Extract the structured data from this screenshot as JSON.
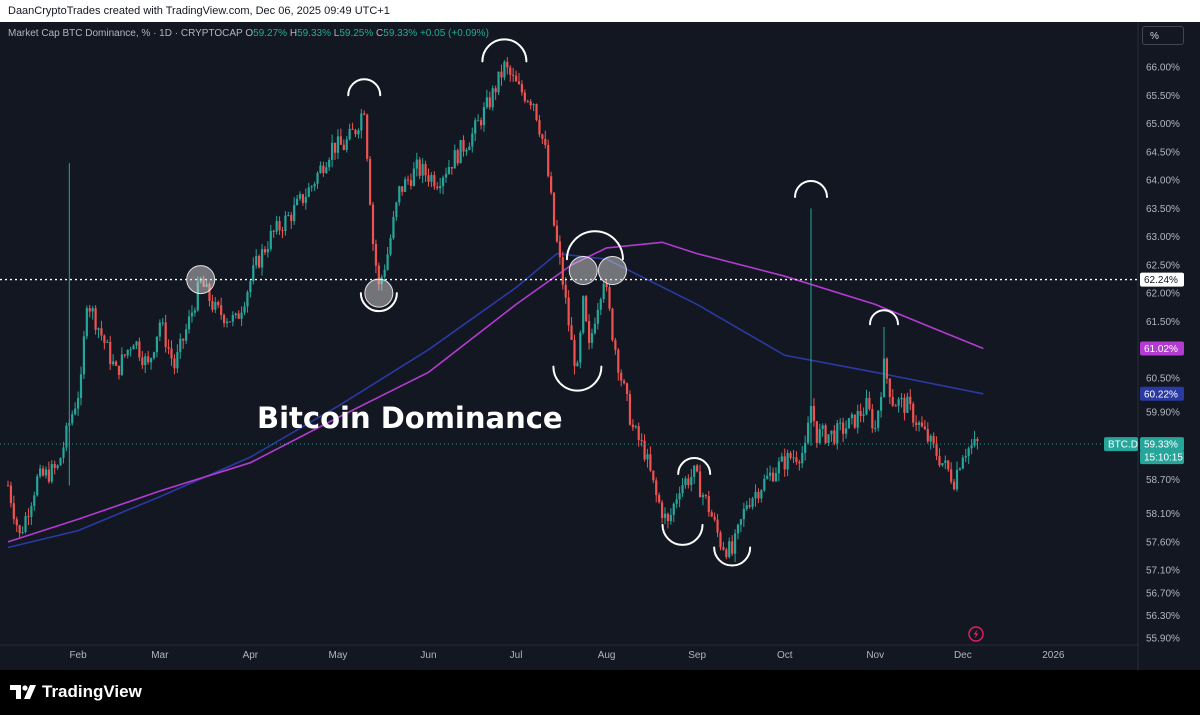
{
  "attribution": "DaanCryptoTrades created with TradingView.com, Dec 06, 2025 09:49 UTC+1",
  "header": {
    "symbol": "Market Cap BTC Dominance, %",
    "interval": "1D",
    "exchange": "CRYPTOCAP",
    "o": "59.27%",
    "h": "59.33%",
    "l": "59.25%",
    "c": "59.33%",
    "change": "+0.05 (+0.09%)"
  },
  "scale_button": "%",
  "brand": "TradingView",
  "colors": {
    "background": "#131722",
    "up": "#26a69a",
    "down": "#ef5350",
    "ma_purple": "#b33bd1",
    "ma_blue": "#2a3aa3",
    "axis_text": "#b2b5be"
  },
  "chart_data": {
    "type": "candlestick",
    "title": "Bitcoin Dominance",
    "symbol_label": "BTC.D",
    "xlabel": "",
    "ylabel": "",
    "x_tick_labels": [
      "Feb",
      "Mar",
      "Apr",
      "May",
      "Jun",
      "Jul",
      "Aug",
      "Sep",
      "Oct",
      "Nov",
      "Dec",
      "2026"
    ],
    "y_tick_labels": [
      "66.00%",
      "65.50%",
      "65.00%",
      "64.50%",
      "64.00%",
      "63.50%",
      "63.00%",
      "62.50%",
      "62.00%",
      "61.50%",
      "60.50%",
      "59.90%",
      "58.70%",
      "58.10%",
      "57.60%",
      "57.10%",
      "56.70%",
      "56.30%",
      "55.90%"
    ],
    "ylim": [
      55.8,
      66.2
    ],
    "last_price": 59.33,
    "countdown": "15:10:15",
    "level_line": 62.24,
    "ma_purple_last": 61.02,
    "ma_blue_last": 60.22,
    "price_path": [
      [
        "2025-01-08",
        58.6
      ],
      [
        "2025-01-12",
        57.7
      ],
      [
        "2025-01-18",
        58.7
      ],
      [
        "2025-01-25",
        58.9
      ],
      [
        "2025-01-29",
        59.7
      ],
      [
        "2025-02-02",
        60.4
      ],
      [
        "2025-02-04",
        61.9
      ],
      [
        "2025-02-08",
        61.4
      ],
      [
        "2025-02-14",
        60.6
      ],
      [
        "2025-02-20",
        61.2
      ],
      [
        "2025-02-25",
        60.7
      ],
      [
        "2025-03-01",
        61.5
      ],
      [
        "2025-03-06",
        60.7
      ],
      [
        "2025-03-11",
        61.5
      ],
      [
        "2025-03-15",
        62.2
      ],
      [
        "2025-03-20",
        61.7
      ],
      [
        "2025-03-27",
        61.5
      ],
      [
        "2025-04-03",
        62.5
      ],
      [
        "2025-04-08",
        63.0
      ],
      [
        "2025-04-15",
        63.4
      ],
      [
        "2025-04-22",
        63.9
      ],
      [
        "2025-04-29",
        64.6
      ],
      [
        "2025-05-03",
        64.6
      ],
      [
        "2025-05-07",
        64.9
      ],
      [
        "2025-05-10",
        65.3
      ],
      [
        "2025-05-11",
        64.5
      ],
      [
        "2025-05-13",
        62.9
      ],
      [
        "2025-05-15",
        62.1
      ],
      [
        "2025-05-18",
        62.7
      ],
      [
        "2025-05-22",
        63.8
      ],
      [
        "2025-05-28",
        64.2
      ],
      [
        "2025-06-04",
        64.0
      ],
      [
        "2025-06-10",
        64.4
      ],
      [
        "2025-06-16",
        64.8
      ],
      [
        "2025-06-22",
        65.4
      ],
      [
        "2025-06-27",
        66.0
      ],
      [
        "2025-07-02",
        65.6
      ],
      [
        "2025-07-07",
        65.4
      ],
      [
        "2025-07-11",
        64.5
      ],
      [
        "2025-07-14",
        63.2
      ],
      [
        "2025-07-17",
        62.2
      ],
      [
        "2025-07-20",
        61.1
      ],
      [
        "2025-07-22",
        60.6
      ],
      [
        "2025-07-24",
        61.8
      ],
      [
        "2025-07-26",
        61.0
      ],
      [
        "2025-07-28",
        61.6
      ],
      [
        "2025-07-31",
        62.3
      ],
      [
        "2025-08-03",
        61.3
      ],
      [
        "2025-08-06",
        60.5
      ],
      [
        "2025-08-10",
        59.6
      ],
      [
        "2025-08-14",
        59.2
      ],
      [
        "2025-08-18",
        58.4
      ],
      [
        "2025-08-22",
        57.9
      ],
      [
        "2025-08-26",
        58.6
      ],
      [
        "2025-08-31",
        58.8
      ],
      [
        "2025-09-05",
        58.2
      ],
      [
        "2025-09-09",
        57.6
      ],
      [
        "2025-09-13",
        57.4
      ],
      [
        "2025-09-18",
        58.3
      ],
      [
        "2025-09-23",
        58.6
      ],
      [
        "2025-09-28",
        58.9
      ],
      [
        "2025-10-03",
        59.1
      ],
      [
        "2025-10-08",
        59.2
      ],
      [
        "2025-10-10",
        60.0
      ],
      [
        "2025-10-12",
        59.5
      ],
      [
        "2025-10-18",
        59.5
      ],
      [
        "2025-10-24",
        59.7
      ],
      [
        "2025-10-29",
        60.0
      ],
      [
        "2025-11-01",
        59.6
      ],
      [
        "2025-11-04",
        60.7
      ],
      [
        "2025-11-07",
        60.1
      ],
      [
        "2025-11-12",
        60.0
      ],
      [
        "2025-11-18",
        59.5
      ],
      [
        "2025-11-24",
        59.0
      ],
      [
        "2025-11-28",
        58.7
      ],
      [
        "2025-12-01",
        59.2
      ],
      [
        "2025-12-06",
        59.33
      ]
    ],
    "ma_purple_path": [
      [
        "2025-01-08",
        57.6
      ],
      [
        "2025-02-01",
        58.0
      ],
      [
        "2025-03-01",
        58.5
      ],
      [
        "2025-04-01",
        59.0
      ],
      [
        "2025-05-01",
        59.8
      ],
      [
        "2025-06-01",
        60.6
      ],
      [
        "2025-07-01",
        61.8
      ],
      [
        "2025-07-20",
        62.5
      ],
      [
        "2025-08-01",
        62.8
      ],
      [
        "2025-08-20",
        62.9
      ],
      [
        "2025-09-01",
        62.7
      ],
      [
        "2025-10-01",
        62.3
      ],
      [
        "2025-11-01",
        61.8
      ],
      [
        "2025-11-20",
        61.4
      ],
      [
        "2025-12-08",
        61.02
      ]
    ],
    "ma_blue_path": [
      [
        "2025-01-08",
        57.5
      ],
      [
        "2025-02-01",
        57.8
      ],
      [
        "2025-03-01",
        58.4
      ],
      [
        "2025-04-01",
        59.1
      ],
      [
        "2025-05-01",
        60.0
      ],
      [
        "2025-06-01",
        61.0
      ],
      [
        "2025-07-01",
        62.1
      ],
      [
        "2025-07-15",
        62.7
      ],
      [
        "2025-08-01",
        62.6
      ],
      [
        "2025-09-01",
        61.8
      ],
      [
        "2025-10-01",
        60.9
      ],
      [
        "2025-11-01",
        60.6
      ],
      [
        "2025-12-08",
        60.22
      ]
    ]
  }
}
